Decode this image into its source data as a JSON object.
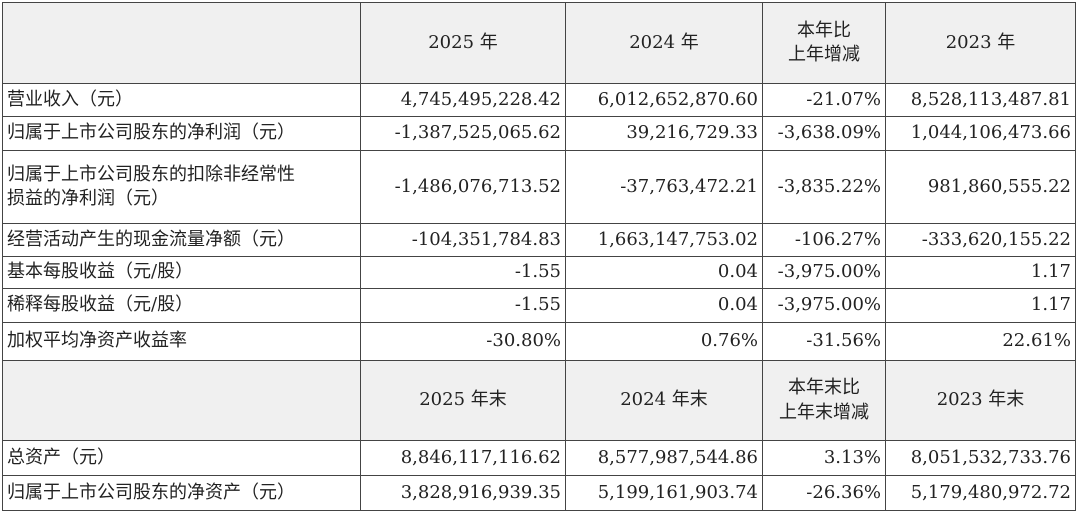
{
  "table": {
    "rows": [
      [
        "",
        "2025 年",
        "2024 年",
        [
          "本年比",
          "上年增减"
        ],
        "2023 年"
      ],
      [
        "营业收入（元）",
        "4,745,495,228.42",
        "6,012,652,870.60",
        "-21.07%",
        "8,528,113,487.81"
      ],
      [
        "归属于上市公司股东的净利润（元）",
        "-1,387,525,065.62",
        "39,216,729.33",
        "-3,638.09%",
        "1,044,106,473.66"
      ],
      [
        [
          "归属于上市公司股东的扣除非经常性",
          "损益的净利润（元）"
        ],
        "-1,486,076,713.52",
        "-37,763,472.21",
        "-3,835.22%",
        "981,860,555.22"
      ],
      [
        "经营活动产生的现金流量净额（元）",
        "-104,351,784.83",
        "1,663,147,753.02",
        "-106.27%",
        "-333,620,155.22"
      ],
      [
        "基本每股收益（元/股）",
        "-1.55",
        "0.04",
        "-3,975.00%",
        "1.17"
      ],
      [
        "稀释每股收益（元/股）",
        "-1.55",
        "0.04",
        "-3,975.00%",
        "1.17"
      ],
      [
        "加权平均净资产收益率",
        "-30.80%",
        "0.76%",
        "-31.56%",
        "22.61%"
      ],
      [
        "",
        "2025 年末",
        "2024 年末",
        [
          "本年末比",
          "上年末增减"
        ],
        "2023 年末"
      ],
      [
        "总资产（元）",
        "8,846,117,116.62",
        "8,577,987,544.86",
        "3.13%",
        "8,051,532,733.76"
      ],
      [
        "归属于上市公司股东的净资产（元）",
        "3,828,916,939.35",
        "5,199,161,903.74",
        "-26.36%",
        "5,179,480,972.72"
      ]
    ]
  }
}
